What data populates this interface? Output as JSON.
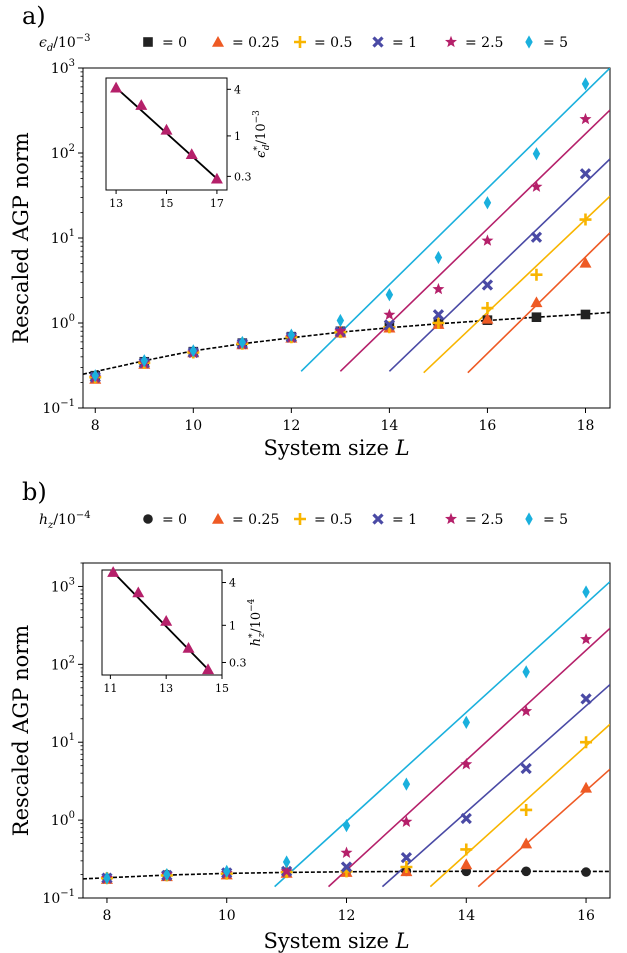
{
  "chart_data": [
    {
      "type": "scatter",
      "panel_label": "a)",
      "legend": {
        "variable": "ϵ_d/10^-3",
        "placement": "top, single row"
      },
      "xlabel": "System size L",
      "ylabel": "Rescaled AGP norm",
      "xlim": [
        7.75,
        18.5
      ],
      "ylim": [
        0.1,
        1000
      ],
      "yscale": "log",
      "xticks": [
        "8",
        "10",
        "12",
        "14",
        "16",
        "18"
      ],
      "yticks": [
        "10^-1",
        "10^0",
        "10^1",
        "10^2",
        "10^3"
      ],
      "grid": false,
      "series": [
        {
          "name": "= 0",
          "marker": "square",
          "color": "#222222",
          "x": [
            8,
            9,
            10,
            11,
            12,
            13,
            14,
            15,
            16,
            17,
            18
          ],
          "y": [
            0.24,
            0.35,
            0.46,
            0.58,
            0.69,
            0.8,
            0.9,
            0.98,
            1.08,
            1.17,
            1.26
          ],
          "fit": {
            "style": "dashed",
            "x": [
              7.75,
              8.5,
              9,
              10,
              11,
              12,
              13,
              14,
              15,
              16,
              17,
              18,
              18.5
            ],
            "y": [
              0.25,
              0.31,
              0.36,
              0.47,
              0.57,
              0.67,
              0.78,
              0.88,
              0.98,
              1.07,
              1.17,
              1.27,
              1.33
            ]
          }
        },
        {
          "name": "= 0.25",
          "marker": "triangle",
          "color": "#ee5a24",
          "x": [
            8,
            9,
            10,
            11,
            12,
            13,
            14,
            15,
            16,
            17,
            18
          ],
          "y": [
            0.22,
            0.33,
            0.45,
            0.56,
            0.67,
            0.77,
            0.88,
            0.97,
            1.12,
            1.75,
            5.1
          ],
          "fit": {
            "style": "solid",
            "x": [
              15.6,
              18.5
            ],
            "y": [
              0.26,
              11.5
            ]
          }
        },
        {
          "name": "= 0.5",
          "marker": "plus",
          "color": "#f8b500",
          "x": [
            8,
            9,
            10,
            11,
            12,
            13,
            14,
            15,
            16,
            17,
            18
          ],
          "y": [
            0.23,
            0.34,
            0.45,
            0.57,
            0.68,
            0.78,
            0.89,
            1.0,
            1.5,
            3.7,
            16.5
          ],
          "fit": {
            "style": "solid",
            "x": [
              14.7,
              18.5
            ],
            "y": [
              0.26,
              31
            ]
          }
        },
        {
          "name": "= 1",
          "marker": "x",
          "color": "#4a4aa5",
          "x": [
            8,
            9,
            10,
            11,
            12,
            13,
            14,
            15,
            16,
            17,
            18
          ],
          "y": [
            0.23,
            0.34,
            0.45,
            0.57,
            0.68,
            0.79,
            0.95,
            1.25,
            2.8,
            10.2,
            57
          ],
          "fit": {
            "style": "solid",
            "x": [
              14.0,
              18.5
            ],
            "y": [
              0.27,
              85
            ]
          }
        },
        {
          "name": "= 2.5",
          "marker": "star",
          "color": "#b5206a",
          "x": [
            8,
            9,
            10,
            11,
            12,
            13,
            14,
            15,
            16,
            17,
            18
          ],
          "y": [
            0.23,
            0.34,
            0.45,
            0.57,
            0.68,
            0.8,
            1.25,
            2.5,
            9.3,
            40,
            250
          ],
          "fit": {
            "style": "solid",
            "x": [
              13.0,
              18.5
            ],
            "y": [
              0.27,
              320
            ]
          }
        },
        {
          "name": "= 5",
          "marker": "diamond",
          "color": "#1ab0dd",
          "x": [
            8,
            9,
            10,
            11,
            12,
            13,
            14,
            15,
            16,
            17,
            18
          ],
          "y": [
            0.24,
            0.36,
            0.47,
            0.59,
            0.72,
            1.07,
            2.15,
            5.9,
            26,
            98,
            650
          ],
          "fit": {
            "style": "solid",
            "x": [
              12.2,
              18.5
            ],
            "y": [
              0.27,
              1000
            ]
          }
        }
      ],
      "inset": {
        "type": "line",
        "ylabel": "ϵ_d*/10^-3",
        "xlim": [
          12.6,
          17.4
        ],
        "xticks": [
          "13",
          "15",
          "17"
        ],
        "yscale": "log",
        "ylim": [
          0.2,
          5.6
        ],
        "yticks": [
          "4",
          "1",
          "0.3"
        ],
        "color": "#b5206a",
        "x": [
          13,
          14,
          15,
          16,
          17
        ],
        "y": [
          4.2,
          2.5,
          1.2,
          0.58,
          0.28
        ],
        "fit": {
          "x": [
            13,
            17
          ],
          "y": [
            4.2,
            0.28
          ]
        }
      }
    },
    {
      "type": "scatter",
      "panel_label": "b)",
      "legend": {
        "variable": "h_z/10^-4",
        "placement": "top, single row"
      },
      "xlabel": "System size L",
      "ylabel": "Rescaled AGP norm",
      "xlim": [
        7.6,
        16.4
      ],
      "ylim": [
        0.1,
        2000
      ],
      "yscale": "log",
      "xticks": [
        "8",
        "10",
        "12",
        "14",
        "16"
      ],
      "yticks": [
        "10^-1",
        "10^0",
        "10^1",
        "10^2",
        "10^3"
      ],
      "grid": false,
      "series": [
        {
          "name": "= 0",
          "marker": "circle",
          "color": "#222222",
          "x": [
            8,
            9,
            10,
            11,
            12,
            13,
            14,
            15,
            16
          ],
          "y": [
            0.18,
            0.2,
            0.21,
            0.215,
            0.22,
            0.22,
            0.22,
            0.22,
            0.215
          ],
          "fit": {
            "style": "dashed",
            "x": [
              7.6,
              8,
              9,
              10,
              11,
              12,
              13,
              14,
              15,
              16,
              16.4
            ],
            "y": [
              0.176,
              0.182,
              0.197,
              0.207,
              0.213,
              0.217,
              0.219,
              0.22,
              0.22,
              0.219,
              0.219
            ]
          }
        },
        {
          "name": "= 0.25",
          "marker": "triangle",
          "color": "#ee5a24",
          "x": [
            8,
            9,
            10,
            11,
            12,
            13,
            14,
            15,
            16
          ],
          "y": [
            0.175,
            0.19,
            0.2,
            0.21,
            0.215,
            0.22,
            0.27,
            0.5,
            2.6
          ],
          "fit": {
            "style": "solid",
            "x": [
              14.2,
              16.4
            ],
            "y": [
              0.14,
              4.5
            ]
          }
        },
        {
          "name": "= 0.5",
          "marker": "plus",
          "color": "#f8b500",
          "x": [
            8,
            9,
            10,
            11,
            12,
            13,
            14,
            15,
            16
          ],
          "y": [
            0.18,
            0.195,
            0.205,
            0.215,
            0.22,
            0.25,
            0.42,
            1.35,
            10
          ],
          "fit": {
            "style": "solid",
            "x": [
              13.4,
              16.4
            ],
            "y": [
              0.14,
              17
            ]
          }
        },
        {
          "name": "= 1",
          "marker": "x",
          "color": "#4a4aa5",
          "x": [
            8,
            9,
            10,
            11,
            12,
            13,
            14,
            15,
            16
          ],
          "y": [
            0.18,
            0.195,
            0.21,
            0.22,
            0.25,
            0.33,
            1.05,
            4.6,
            36
          ],
          "fit": {
            "style": "solid",
            "x": [
              12.6,
              16.4
            ],
            "y": [
              0.14,
              55
            ]
          }
        },
        {
          "name": "= 2.5",
          "marker": "star",
          "color": "#b5206a",
          "x": [
            8,
            9,
            10,
            11,
            12,
            13,
            14,
            15,
            16
          ],
          "y": [
            0.18,
            0.2,
            0.21,
            0.22,
            0.38,
            0.95,
            5.2,
            25,
            210
          ],
          "fit": {
            "style": "solid",
            "x": [
              11.7,
              16.4
            ],
            "y": [
              0.14,
              290
            ]
          }
        },
        {
          "name": "= 5",
          "marker": "diamond",
          "color": "#1ab0dd",
          "x": [
            8,
            9,
            10,
            11,
            12,
            13,
            14,
            15,
            16
          ],
          "y": [
            0.18,
            0.2,
            0.22,
            0.29,
            0.85,
            2.9,
            18,
            80,
            850
          ],
          "fit": {
            "style": "solid",
            "x": [
              10.8,
              16.4
            ],
            "y": [
              0.14,
              1150
            ]
          }
        }
      ],
      "inset": {
        "type": "line",
        "ylabel": "h_z*/10^-4",
        "xlim": [
          10.7,
          15.0
        ],
        "xticks": [
          "11",
          "13",
          "15"
        ],
        "yscale": "log",
        "ylim": [
          0.2,
          6.0
        ],
        "yticks": [
          "4",
          "1",
          "0.3"
        ],
        "color": "#b5206a",
        "x": [
          11.1,
          12,
          13,
          13.8,
          14.5
        ],
        "y": [
          5.6,
          2.9,
          1.15,
          0.48,
          0.24
        ],
        "fit": {
          "x": [
            11.1,
            14.5
          ],
          "y": [
            5.6,
            0.24
          ]
        }
      }
    }
  ]
}
